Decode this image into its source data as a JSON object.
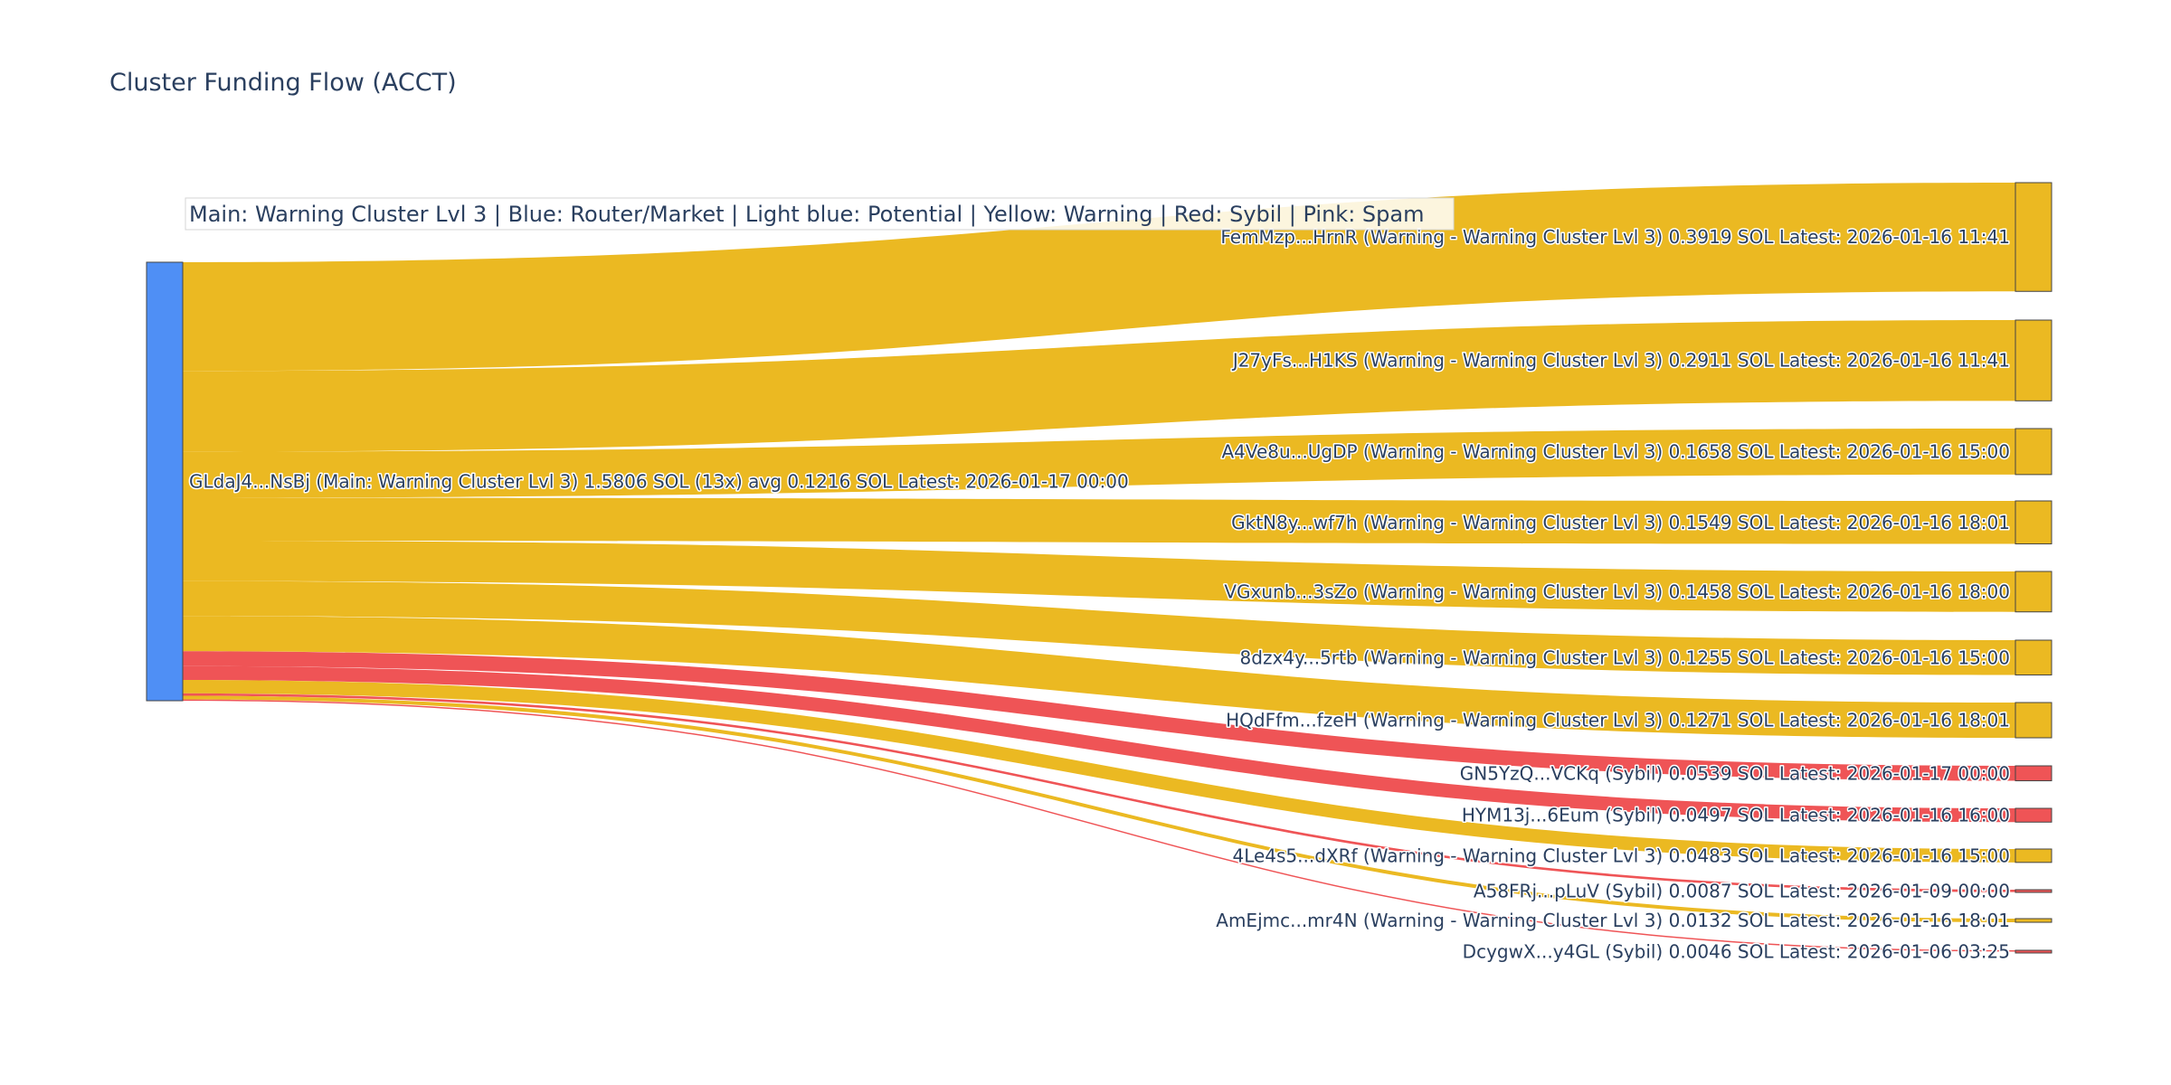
{
  "chart_data": {
    "type": "sankey",
    "title": "Cluster Funding Flow (ACCT)",
    "legend_text": "Main: Warning Cluster Lvl 3  |  Blue: Router/Market | Light blue: Potential | Yellow: Warning | Red: Sybil | Pink: Spam",
    "colors": {
      "router": "#4f8ff5",
      "warning": "#ebb922",
      "sybil": "#ef5456"
    },
    "source": {
      "label": "GLdaJ4...NsBj (Main: Warning Cluster Lvl 3) 1.5806 SOL (13x) avg 0.1216 SOL Latest: 2026-01-17 00:00",
      "category": "router"
    },
    "targets": [
      {
        "label": "FemMzp...HrnR (Warning - Warning Cluster Lvl 3) 0.3919 SOL Latest: 2026-01-16 11:41",
        "value": 0.3919,
        "category": "warning"
      },
      {
        "label": "J27yFs...H1KS (Warning - Warning Cluster Lvl 3) 0.2911 SOL Latest: 2026-01-16 11:41",
        "value": 0.2911,
        "category": "warning"
      },
      {
        "label": "A4Ve8u...UgDP (Warning - Warning Cluster Lvl 3) 0.1658 SOL Latest: 2026-01-16 15:00",
        "value": 0.1658,
        "category": "warning"
      },
      {
        "label": "GktN8y...wf7h (Warning - Warning Cluster Lvl 3) 0.1549 SOL Latest: 2026-01-16 18:01",
        "value": 0.1549,
        "category": "warning"
      },
      {
        "label": "VGxunb...3sZo (Warning - Warning Cluster Lvl 3) 0.1458 SOL Latest: 2026-01-16 18:00",
        "value": 0.1458,
        "category": "warning"
      },
      {
        "label": "8dzx4y...5rtb (Warning - Warning Cluster Lvl 3) 0.1255 SOL Latest: 2026-01-16 15:00",
        "value": 0.1255,
        "category": "warning"
      },
      {
        "label": "HQdFfm...fzeH (Warning - Warning Cluster Lvl 3) 0.1271 SOL Latest: 2026-01-16 18:01",
        "value": 0.1271,
        "category": "warning"
      },
      {
        "label": "GN5YzQ...VCKq (Sybil) 0.0539 SOL Latest: 2026-01-17 00:00",
        "value": 0.0539,
        "category": "sybil"
      },
      {
        "label": "HYM13j...6Eum (Sybil) 0.0497 SOL Latest: 2026-01-16 16:00",
        "value": 0.0497,
        "category": "sybil"
      },
      {
        "label": "4Le4s5...dXRf (Warning - Warning Cluster Lvl 3) 0.0483 SOL Latest: 2026-01-16 15:00",
        "value": 0.0483,
        "category": "warning"
      },
      {
        "label": "A58FRj...pLuV (Sybil) 0.0087 SOL Latest: 2026-01-09 00:00",
        "value": 0.0087,
        "category": "sybil"
      },
      {
        "label": "AmEjmc...mr4N (Warning - Warning Cluster Lvl 3) 0.0132 SOL Latest: 2026-01-16 18:01",
        "value": 0.0132,
        "category": "warning"
      },
      {
        "label": "DcygwX...y4GL (Sybil) 0.0046 SOL Latest: 2026-01-06 03:25",
        "value": 0.0046,
        "category": "sybil"
      }
    ]
  }
}
